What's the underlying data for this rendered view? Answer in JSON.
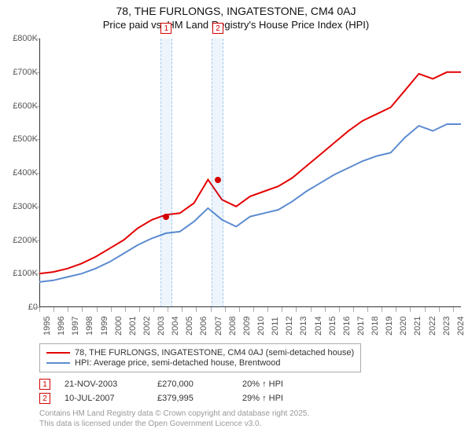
{
  "title_line1": "78, THE FURLONGS, INGATESTONE, CM4 0AJ",
  "title_line2": "Price paid vs. HM Land Registry's House Price Index (HPI)",
  "chart": {
    "type": "line",
    "background_color": "#ffffff",
    "x_years": [
      1995,
      1996,
      1997,
      1998,
      1999,
      2000,
      2001,
      2002,
      2003,
      2004,
      2005,
      2006,
      2007,
      2008,
      2009,
      2010,
      2011,
      2012,
      2013,
      2014,
      2015,
      2016,
      2017,
      2018,
      2019,
      2020,
      2021,
      2022,
      2023,
      2024
    ],
    "xlim": [
      1995,
      2025
    ],
    "ylim": [
      0,
      800000
    ],
    "ytick_step": 100000,
    "y_tick_labels": [
      "£0",
      "£100K",
      "£200K",
      "£300K",
      "£400K",
      "£500K",
      "£600K",
      "£700K",
      "£800K"
    ],
    "axis_color": "#333333",
    "tick_color": "#aaaaaa",
    "label_color": "#555555",
    "label_fontsize": 11,
    "band_fill": "rgba(30,120,210,0.08)",
    "band_border": "rgba(30,120,210,0.35)",
    "series": [
      {
        "name": "property",
        "label": "78, THE FURLONGS, INGATESTONE, CM4 0AJ (semi-detached house)",
        "color": "#e40000",
        "line_width": 2,
        "values": [
          100000,
          105000,
          115000,
          130000,
          150000,
          175000,
          200000,
          235000,
          260000,
          275000,
          280000,
          310000,
          380000,
          320000,
          300000,
          330000,
          345000,
          360000,
          385000,
          420000,
          455000,
          490000,
          525000,
          555000,
          575000,
          595000,
          645000,
          695000,
          680000,
          700000
        ]
      },
      {
        "name": "hpi",
        "label": "HPI: Average price, semi-detached house, Brentwood",
        "color": "#5b8bd0",
        "line_width": 2,
        "values": [
          75000,
          80000,
          90000,
          100000,
          115000,
          135000,
          160000,
          185000,
          205000,
          220000,
          225000,
          255000,
          295000,
          260000,
          240000,
          270000,
          280000,
          290000,
          315000,
          345000,
          370000,
          395000,
          415000,
          435000,
          450000,
          460000,
          505000,
          540000,
          525000,
          545000
        ]
      }
    ],
    "sale_bands": [
      {
        "year": 2003.9,
        "width_years": 0.8
      },
      {
        "year": 2007.5,
        "width_years": 0.8
      }
    ],
    "sale_markers": [
      {
        "idx": "1",
        "year": 2003.9,
        "price": 270000
      },
      {
        "idx": "2",
        "year": 2007.52,
        "price": 379995
      }
    ]
  },
  "legend": {
    "items": [
      {
        "color": "#e40000",
        "label": "78, THE FURLONGS, INGATESTONE, CM4 0AJ (semi-detached house)"
      },
      {
        "color": "#5b8bd0",
        "label": "HPI: Average price, semi-detached house, Brentwood"
      }
    ]
  },
  "sales": [
    {
      "idx": "1",
      "date": "21-NOV-2003",
      "price": "£270,000",
      "delta": "20% ↑ HPI"
    },
    {
      "idx": "2",
      "date": "10-JUL-2007",
      "price": "£379,995",
      "delta": "29% ↑ HPI"
    }
  ],
  "footer_line1": "Contains HM Land Registry data © Crown copyright and database right 2025.",
  "footer_line2": "This data is licensed under the Open Government Licence v3.0."
}
